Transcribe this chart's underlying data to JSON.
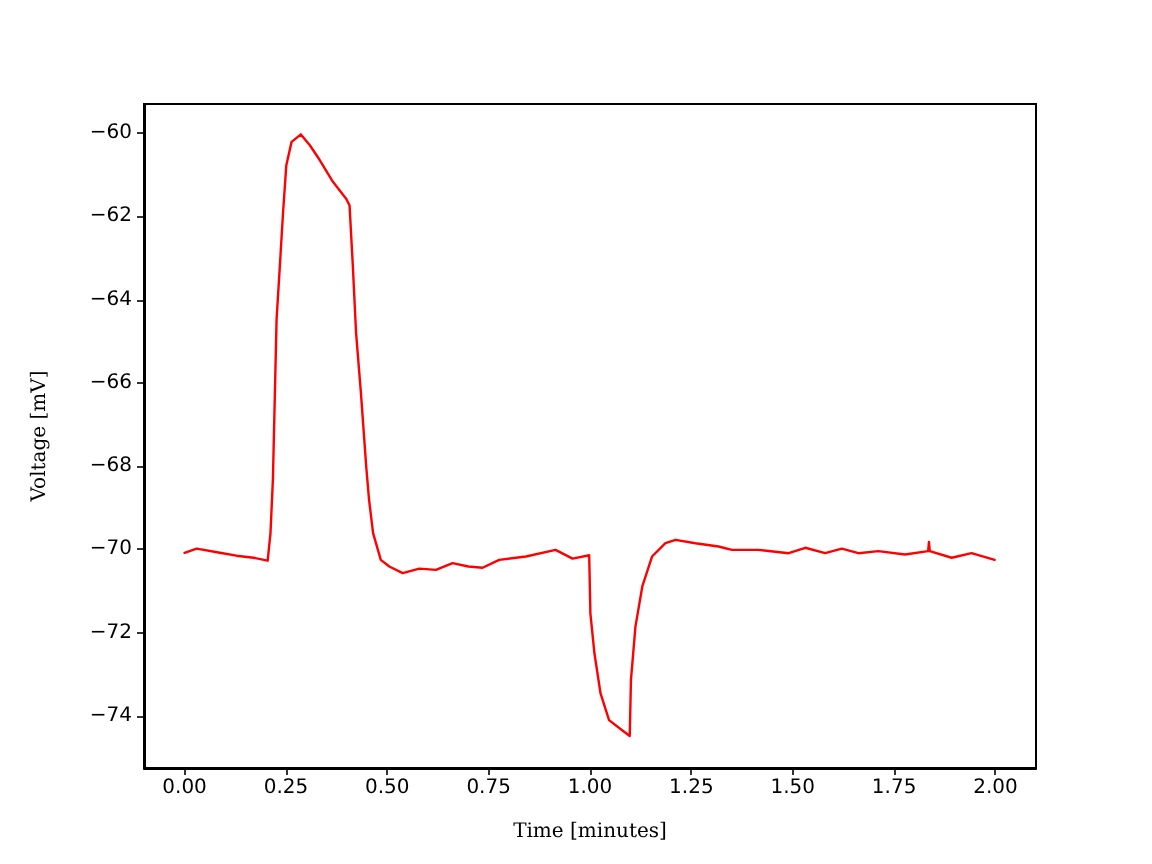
{
  "chart_data": {
    "type": "line",
    "xlabel": "Time [minutes]",
    "ylabel": "Voltage [mV]",
    "color": "#ff0000",
    "marker": "none",
    "grid": false,
    "x": [
      0.0,
      0.03,
      0.087,
      0.128,
      0.17,
      0.205,
      0.212,
      0.218,
      0.227,
      0.235,
      0.243,
      0.251,
      0.264,
      0.287,
      0.309,
      0.333,
      0.366,
      0.399,
      0.407,
      0.415,
      0.423,
      0.435,
      0.448,
      0.455,
      0.465,
      0.484,
      0.505,
      0.538,
      0.579,
      0.62,
      0.661,
      0.7,
      0.735,
      0.776,
      0.842,
      0.915,
      0.957,
      0.998,
      1.001,
      1.011,
      1.026,
      1.047,
      1.08,
      1.098,
      1.101,
      1.112,
      1.129,
      1.153,
      1.186,
      1.211,
      1.26,
      1.317,
      1.35,
      1.416,
      1.49,
      1.531,
      1.58,
      1.621,
      1.662,
      1.711,
      1.777,
      1.834,
      1.836,
      1.838,
      1.892,
      1.941,
      1.998
    ],
    "values": [
      -70.08,
      -69.98,
      -70.08,
      -70.15,
      -70.2,
      -70.27,
      -69.6,
      -68.3,
      -64.47,
      -63.2,
      -61.9,
      -60.77,
      -60.21,
      -60.03,
      -60.29,
      -60.64,
      -61.17,
      -61.58,
      -61.74,
      -63.18,
      -64.79,
      -66.24,
      -68.0,
      -68.8,
      -69.61,
      -70.25,
      -70.41,
      -70.57,
      -70.46,
      -70.49,
      -70.33,
      -70.41,
      -70.44,
      -70.25,
      -70.17,
      -70.01,
      -70.22,
      -70.14,
      -71.54,
      -72.5,
      -73.46,
      -74.1,
      -74.35,
      -74.48,
      -73.14,
      -71.86,
      -70.89,
      -70.17,
      -69.85,
      -69.77,
      -69.85,
      -69.93,
      -70.01,
      -70.01,
      -70.09,
      -69.96,
      -70.09,
      -69.98,
      -70.09,
      -70.04,
      -70.12,
      -70.04,
      -69.82,
      -70.04,
      -70.2,
      -70.09,
      -70.25
    ],
    "xlim": [
      -0.1,
      2.1
    ],
    "ylim": [
      -75.25,
      -59.3
    ],
    "xticks": [
      {
        "value": 0,
        "label": "0.00"
      },
      {
        "value": 0.25,
        "label": "0.25"
      },
      {
        "value": 0.5,
        "label": "0.50"
      },
      {
        "value": 0.75,
        "label": "0.75"
      },
      {
        "value": 1,
        "label": "1.00"
      },
      {
        "value": 1.25,
        "label": "1.25"
      },
      {
        "value": 1.5,
        "label": "1.50"
      },
      {
        "value": 1.75,
        "label": "1.75"
      },
      {
        "value": 2,
        "label": "2.00"
      }
    ],
    "yticks": [
      {
        "value": -74,
        "label": "−74"
      },
      {
        "value": -72,
        "label": "−72"
      },
      {
        "value": -70,
        "label": "−70"
      },
      {
        "value": -68,
        "label": "−68"
      },
      {
        "value": -66,
        "label": "−66"
      },
      {
        "value": -64,
        "label": "−64"
      },
      {
        "value": -62,
        "label": "−62"
      },
      {
        "value": -60,
        "label": "−60"
      }
    ]
  }
}
